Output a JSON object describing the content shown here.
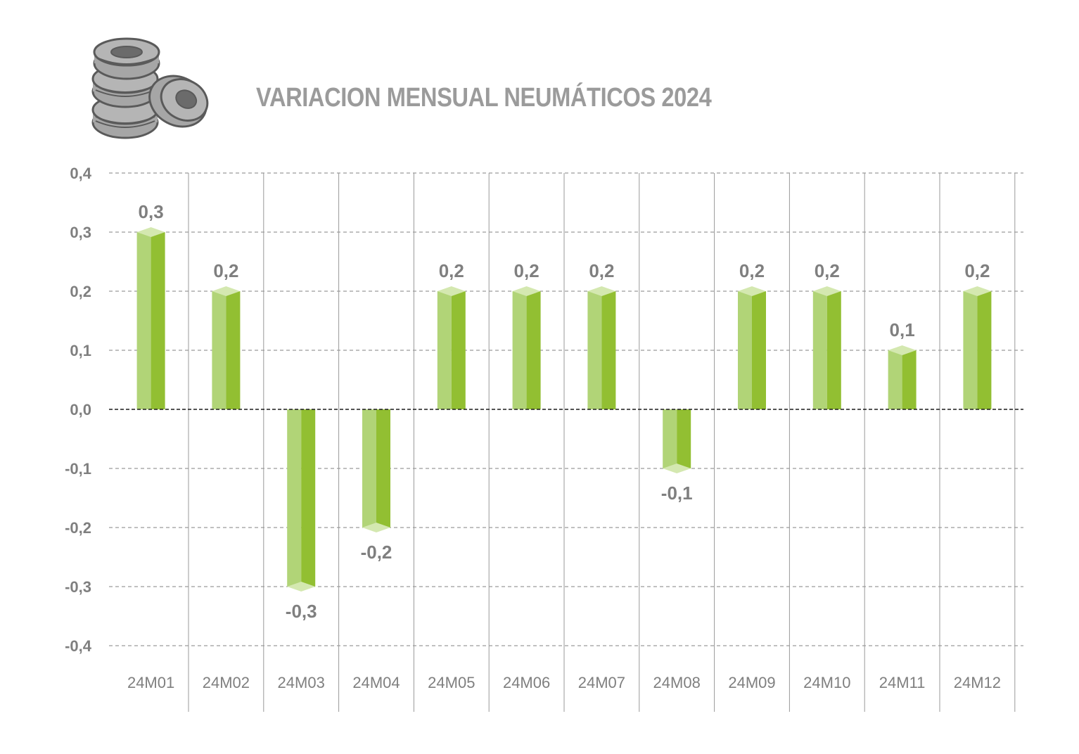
{
  "title": "VARIACION MENSUAL NEUMÁTICOS 2024",
  "logo_icon": "stacked-tires-icon",
  "colors": {
    "bar_light": "#b1d477",
    "bar_dark": "#92bf32",
    "bar_cap": "#d4e8b0",
    "text": "#7f7f7f",
    "title": "#9b9b9b",
    "grid": "#808080",
    "zero_line": "#1a1a1a",
    "category_divider": "#999999",
    "tire_fill": "#a6a6a6",
    "tire_stroke": "#5a5a5a"
  },
  "chart_data": {
    "type": "bar",
    "title": "VARIACION MENSUAL NEUMÁTICOS 2024",
    "xlabel": "",
    "ylabel": "",
    "categories": [
      "24M01",
      "24M02",
      "24M03",
      "24M04",
      "24M05",
      "24M06",
      "24M07",
      "24M08",
      "24M09",
      "24M10",
      "24M11",
      "24M12"
    ],
    "values": [
      0.3,
      0.2,
      -0.3,
      -0.2,
      0.2,
      0.2,
      0.2,
      -0.1,
      0.2,
      0.2,
      0.1,
      0.2
    ],
    "data_labels": [
      "0,3",
      "0,2",
      "-0,3",
      "-0,2",
      "0,2",
      "0,2",
      "0,2",
      "-0,1",
      "0,2",
      "0,2",
      "0,1",
      "0,2"
    ],
    "y_ticks": [
      0.4,
      0.3,
      0.2,
      0.1,
      0.0,
      -0.1,
      -0.2,
      -0.3,
      -0.4
    ],
    "y_tick_labels": [
      "0,4",
      "0,3",
      "0,2",
      "0,1",
      "0,0",
      "-0,1",
      "-0,2",
      "-0,3",
      "-0,4"
    ],
    "ylim": [
      -0.4,
      0.4
    ],
    "grid": true,
    "grid_style": "dashed",
    "legend": false
  }
}
